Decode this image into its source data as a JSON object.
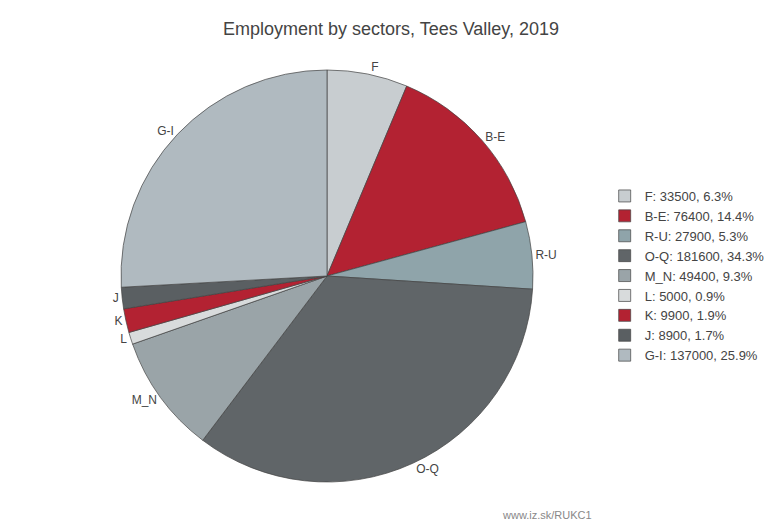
{
  "chart_data": {
    "type": "pie",
    "title": "Employment by sectors, Tees Valley, 2019",
    "categories": [
      "F",
      "B-E",
      "R-U",
      "O-Q",
      "M_N",
      "L",
      "K",
      "J",
      "G-I"
    ],
    "values": [
      33500,
      76400,
      27900,
      181600,
      49400,
      5000,
      9900,
      8900,
      137000
    ],
    "value_labels": [
      "F: 33500, 6.3%",
      "B-E: 76400, 14.4%",
      "R-U: 27900, 5.3%",
      "O-Q: 181600, 34.3%",
      "M_N: 49400, 9.3%",
      "L: 5000, 0.9%",
      "K: 9900, 1.9%",
      "J: 8900, 1.7%",
      "G-I: 137000, 25.9%"
    ],
    "colors": [
      "#c8cdd0",
      "#b32232",
      "#8fa4aa",
      "#606568",
      "#9aa4a8",
      "#d8dbdc",
      "#b32232",
      "#5a5f62",
      "#b0bac0"
    ],
    "legend": "right",
    "annotations": [
      {
        "text": "www.iz.sk/RUKC1"
      }
    ]
  }
}
